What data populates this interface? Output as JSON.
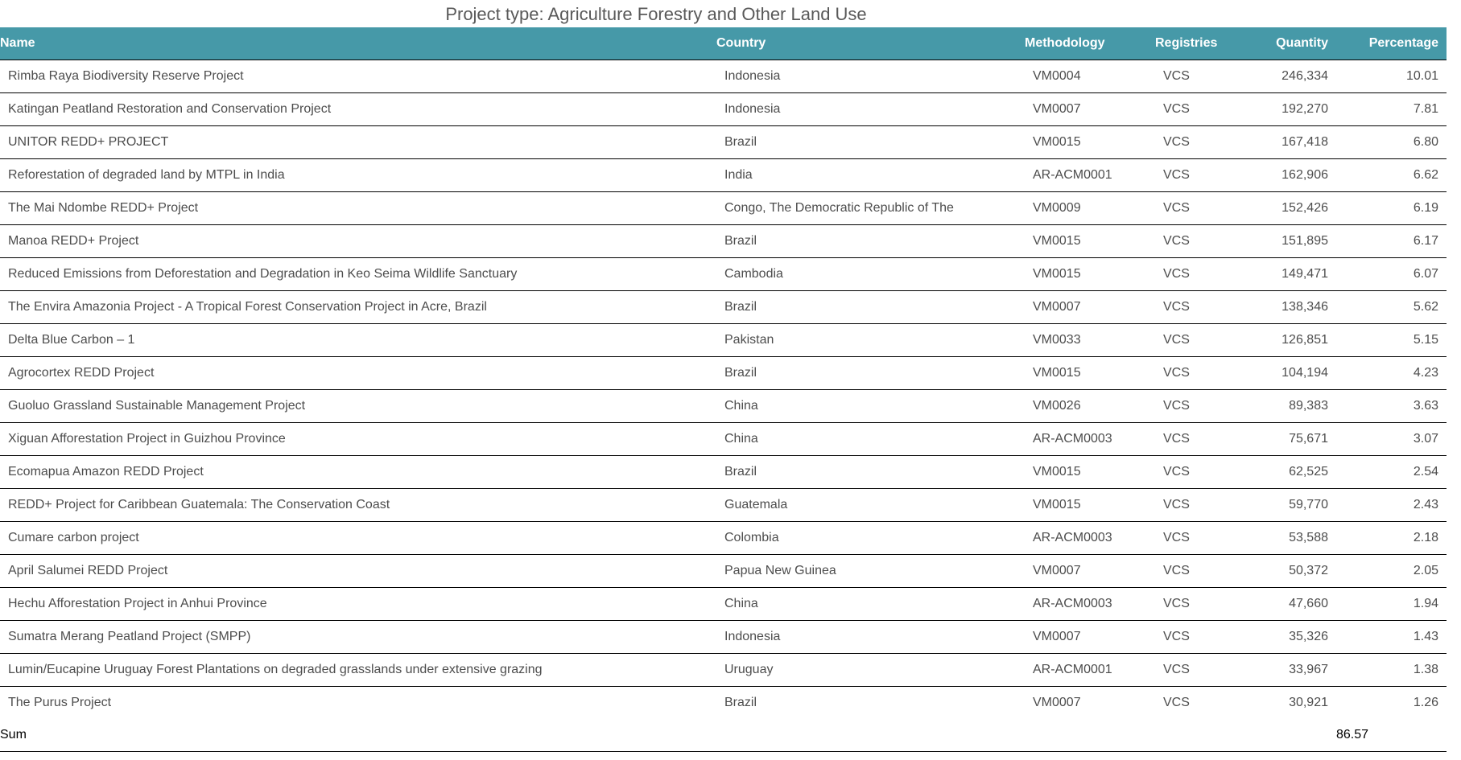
{
  "chart_data": {
    "type": "table",
    "title": "Project type: Agriculture Forestry and Other Land Use",
    "columns": [
      "Name",
      "Country",
      "Methodology",
      "Registries",
      "Quantity",
      "Percentage"
    ],
    "column_keys": [
      "name",
      "country",
      "methodology",
      "registries",
      "quantity",
      "percentage"
    ],
    "rows": [
      [
        "Rimba Raya Biodiversity Reserve Project",
        "Indonesia",
        "VM0004",
        "VCS",
        "246,334",
        "10.01"
      ],
      [
        "Katingan Peatland Restoration and Conservation Project",
        "Indonesia",
        "VM0007",
        "VCS",
        "192,270",
        "7.81"
      ],
      [
        "UNITOR REDD+ PROJECT",
        "Brazil",
        "VM0015",
        "VCS",
        "167,418",
        "6.80"
      ],
      [
        "Reforestation of degraded land by MTPL in India",
        "India",
        "AR-ACM0001",
        "VCS",
        "162,906",
        "6.62"
      ],
      [
        "The Mai Ndombe REDD+ Project",
        "Congo, The Democratic Republic of The",
        "VM0009",
        "VCS",
        "152,426",
        "6.19"
      ],
      [
        "Manoa REDD+ Project",
        "Brazil",
        "VM0015",
        "VCS",
        "151,895",
        "6.17"
      ],
      [
        "Reduced Emissions from Deforestation and Degradation in Keo Seima Wildlife Sanctuary",
        "Cambodia",
        "VM0015",
        "VCS",
        "149,471",
        "6.07"
      ],
      [
        "The Envira Amazonia Project - A Tropical Forest Conservation Project in Acre, Brazil",
        "Brazil",
        "VM0007",
        "VCS",
        "138,346",
        "5.62"
      ],
      [
        "Delta Blue Carbon – 1",
        "Pakistan",
        "VM0033",
        "VCS",
        "126,851",
        "5.15"
      ],
      [
        "Agrocortex REDD Project",
        "Brazil",
        "VM0015",
        "VCS",
        "104,194",
        "4.23"
      ],
      [
        "Guoluo Grassland Sustainable Management Project",
        "China",
        "VM0026",
        "VCS",
        "89,383",
        "3.63"
      ],
      [
        "Xiguan Afforestation Project in Guizhou Province",
        "China",
        "AR-ACM0003",
        "VCS",
        "75,671",
        "3.07"
      ],
      [
        "Ecomapua Amazon REDD Project",
        "Brazil",
        "VM0015",
        "VCS",
        "62,525",
        "2.54"
      ],
      [
        "REDD+ Project for Caribbean Guatemala: The Conservation Coast",
        "Guatemala",
        "VM0015",
        "VCS",
        "59,770",
        "2.43"
      ],
      [
        "Cumare carbon project",
        "Colombia",
        "AR-ACM0003",
        "VCS",
        "53,588",
        "2.18"
      ],
      [
        "April Salumei REDD Project",
        "Papua New Guinea",
        "VM0007",
        "VCS",
        "50,372",
        "2.05"
      ],
      [
        "Hechu Afforestation Project in Anhui Province",
        "China",
        "AR-ACM0003",
        "VCS",
        "47,660",
        "1.94"
      ],
      [
        "Sumatra Merang Peatland Project (SMPP)",
        "Indonesia",
        "VM0007",
        "VCS",
        "35,326",
        "1.43"
      ],
      [
        "Lumin/Eucapine Uruguay Forest Plantations on degraded grasslands under extensive grazing",
        "Uruguay",
        "AR-ACM0001",
        "VCS",
        "33,967",
        "1.38"
      ],
      [
        "The Purus Project",
        "Brazil",
        "VM0007",
        "VCS",
        "30,921",
        "1.26"
      ]
    ],
    "sum_row": {
      "label": "Sum",
      "percentage": "86.57"
    }
  },
  "colors": {
    "header_bg": "#4699A8",
    "header_text": "#FFFFFF",
    "row_text": "#4D4D4D",
    "border": "#000000",
    "title_text": "#595959"
  }
}
